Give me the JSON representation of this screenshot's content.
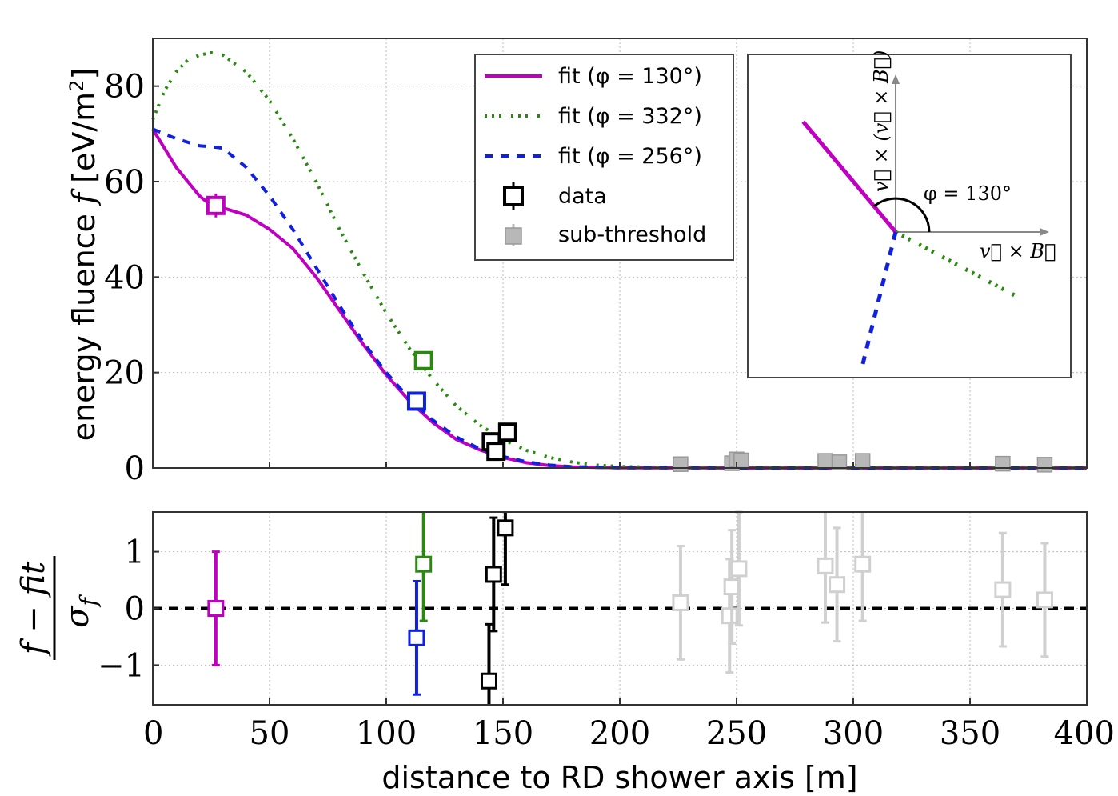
{
  "chart_data": [
    {
      "type": "line",
      "panel": "top",
      "ylabel_prefix": "energy fluence ",
      "ylabel_var": "f",
      "ylabel_unit": " [eV/m",
      "ylabel_sup": "2",
      "ylabel_close": "]",
      "xlim": [
        0,
        400
      ],
      "ylim": [
        0,
        90
      ],
      "yticks": [
        "0",
        "20",
        "40",
        "60",
        "80"
      ],
      "grid": true,
      "legend_position": "top-center",
      "legend": [
        {
          "label": "fit (φ = 130°)",
          "style": "solid",
          "color": "#c000c0"
        },
        {
          "label": "fit (φ = 332°)",
          "style": "dotted",
          "color": "#2a8a0f"
        },
        {
          "label": "fit (φ = 256°)",
          "style": "dashed",
          "color": "#1020e0"
        },
        {
          "label": "data",
          "style": "marker",
          "color": "#000000"
        },
        {
          "label": "sub-threshold",
          "style": "marker-filled",
          "color": "#b8b8b8"
        }
      ],
      "series": [
        {
          "name": "fit (φ = 130°)",
          "color": "#c000c0",
          "x": [
            0,
            10,
            20,
            25,
            30,
            40,
            50,
            60,
            70,
            80,
            90,
            100,
            110,
            120,
            130,
            140,
            150,
            160,
            170,
            180,
            200,
            250,
            300,
            400
          ],
          "y": [
            71,
            63,
            57,
            55,
            54.5,
            53,
            50,
            46,
            40,
            33,
            26,
            19.5,
            14,
            9.5,
            6,
            3.8,
            2.2,
            1.1,
            0.5,
            0.2,
            0.05,
            0,
            0,
            0
          ]
        },
        {
          "name": "fit (φ = 332°)",
          "color": "#2a8a0f",
          "x": [
            0,
            5,
            10,
            15,
            20,
            25,
            30,
            40,
            50,
            60,
            70,
            80,
            90,
            100,
            110,
            120,
            130,
            140,
            150,
            160,
            170,
            180,
            190,
            200,
            220,
            250,
            300,
            400
          ],
          "y": [
            73,
            79,
            83,
            85.5,
            86.5,
            87,
            86.5,
            83,
            77,
            69,
            60,
            50,
            41,
            32.5,
            25,
            18.5,
            13,
            9,
            6,
            3.7,
            2.2,
            1.2,
            0.6,
            0.3,
            0.1,
            0,
            0,
            0
          ]
        },
        {
          "name": "fit (φ = 256°)",
          "color": "#1020e0",
          "x": [
            0,
            10,
            20,
            25,
            30,
            40,
            50,
            60,
            70,
            80,
            90,
            100,
            110,
            120,
            130,
            140,
            150,
            160,
            170,
            180,
            200,
            250,
            300,
            400
          ],
          "y": [
            71,
            69,
            67.5,
            67.3,
            67,
            63,
            57,
            50,
            42,
            34,
            26.5,
            20,
            14.5,
            10,
            6.5,
            4,
            2.4,
            1.3,
            0.6,
            0.25,
            0.05,
            0,
            0,
            0
          ]
        }
      ],
      "points": [
        {
          "x": 27,
          "y": 55,
          "err": 2.5,
          "color": "#c000c0",
          "kind": "data"
        },
        {
          "x": 113,
          "y": 14,
          "err": 1.2,
          "color": "#1020e0",
          "kind": "data"
        },
        {
          "x": 116,
          "y": 22.5,
          "err": 1.5,
          "color": "#2a8a0f",
          "kind": "data"
        },
        {
          "x": 145,
          "y": 5.5,
          "err": 1.0,
          "color": "#000000",
          "kind": "data"
        },
        {
          "x": 147,
          "y": 3.5,
          "err": 1.0,
          "color": "#000000",
          "kind": "data"
        },
        {
          "x": 152,
          "y": 7.5,
          "err": 1.2,
          "color": "#000000",
          "kind": "data"
        },
        {
          "x": 226,
          "y": 0.8,
          "err": 0.8,
          "color": "#b8b8b8",
          "kind": "sub"
        },
        {
          "x": 248,
          "y": 1.0,
          "err": 0.8,
          "color": "#b8b8b8",
          "kind": "sub"
        },
        {
          "x": 250,
          "y": 1.8,
          "err": 0.8,
          "color": "#b8b8b8",
          "kind": "sub"
        },
        {
          "x": 252,
          "y": 1.6,
          "err": 0.8,
          "color": "#b8b8b8",
          "kind": "sub"
        },
        {
          "x": 288,
          "y": 1.5,
          "err": 0.8,
          "color": "#b8b8b8",
          "kind": "sub"
        },
        {
          "x": 294,
          "y": 1.2,
          "err": 0.8,
          "color": "#b8b8b8",
          "kind": "sub"
        },
        {
          "x": 304,
          "y": 1.5,
          "err": 0.8,
          "color": "#b8b8b8",
          "kind": "sub"
        },
        {
          "x": 364,
          "y": 0.9,
          "err": 0.8,
          "color": "#b8b8b8",
          "kind": "sub"
        },
        {
          "x": 382,
          "y": 0.7,
          "err": 0.8,
          "color": "#b8b8b8",
          "kind": "sub"
        }
      ],
      "inset": {
        "angles_deg": [
          130,
          332,
          256
        ],
        "colors": [
          "#c000c0",
          "#2a8a0f",
          "#1020e0"
        ],
        "axis_x_label": "v⃗ × B⃗",
        "axis_y_label": "v⃗ × (v⃗ × B⃗)",
        "angle_label": "φ = 130°"
      }
    },
    {
      "type": "scatter",
      "panel": "bottom",
      "ylabel": "(f − fit) / σf",
      "ylabel_num": "f − fit",
      "ylabel_den": "σ",
      "ylabel_den_sub": "f",
      "xlabel": "distance to RD shower axis [m]",
      "xlim": [
        0,
        400
      ],
      "ylim": [
        -1.7,
        1.7
      ],
      "xticks": [
        "0",
        "50",
        "100",
        "150",
        "200",
        "250",
        "300",
        "350",
        "400"
      ],
      "yticks": [
        "−1",
        "0",
        "1"
      ],
      "reference_line": 0,
      "points": [
        {
          "x": 27,
          "y": 0.0,
          "err": 1.0,
          "color": "#c000c0",
          "kind": "data"
        },
        {
          "x": 113,
          "y": -0.52,
          "err": 1.0,
          "color": "#1020e0",
          "kind": "data"
        },
        {
          "x": 116,
          "y": 0.78,
          "err": 1.0,
          "color": "#2a8a0f",
          "kind": "data"
        },
        {
          "x": 144,
          "y": -1.28,
          "err": 1.0,
          "color": "#000000",
          "kind": "data"
        },
        {
          "x": 146,
          "y": 0.6,
          "err": 1.0,
          "color": "#000000",
          "kind": "data"
        },
        {
          "x": 151,
          "y": 1.42,
          "err": 1.0,
          "color": "#000000",
          "kind": "data"
        },
        {
          "x": 226,
          "y": 0.1,
          "err": 1.0,
          "color": "#d0d0d0",
          "kind": "sub"
        },
        {
          "x": 247,
          "y": -0.13,
          "err": 1.0,
          "color": "#d0d0d0",
          "kind": "sub"
        },
        {
          "x": 248,
          "y": 0.38,
          "err": 1.0,
          "color": "#d0d0d0",
          "kind": "sub"
        },
        {
          "x": 251,
          "y": 0.7,
          "err": 1.0,
          "color": "#d0d0d0",
          "kind": "sub"
        },
        {
          "x": 288,
          "y": 0.75,
          "err": 1.0,
          "color": "#d0d0d0",
          "kind": "sub"
        },
        {
          "x": 293,
          "y": 0.42,
          "err": 1.0,
          "color": "#d0d0d0",
          "kind": "sub"
        },
        {
          "x": 304,
          "y": 0.78,
          "err": 1.0,
          "color": "#d0d0d0",
          "kind": "sub"
        },
        {
          "x": 364,
          "y": 0.33,
          "err": 1.0,
          "color": "#d0d0d0",
          "kind": "sub"
        },
        {
          "x": 382,
          "y": 0.15,
          "err": 1.0,
          "color": "#d0d0d0",
          "kind": "sub"
        }
      ]
    }
  ]
}
